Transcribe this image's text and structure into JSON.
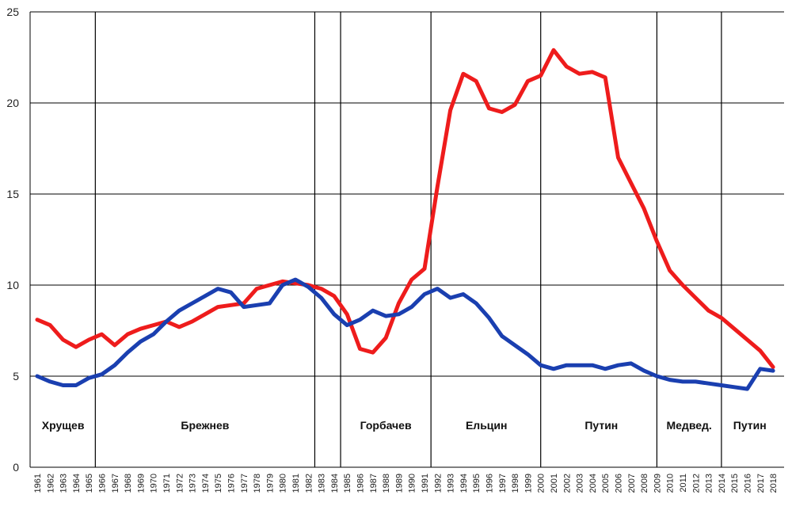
{
  "chart_data": {
    "type": "line",
    "title": "",
    "xlabel": "",
    "ylabel": "",
    "ylim": [
      0,
      25
    ],
    "yticks": [
      0,
      5,
      10,
      15,
      20,
      25
    ],
    "grid": true,
    "x": [
      "1961",
      "1962",
      "1963",
      "1964",
      "1965",
      "1966",
      "1967",
      "1968",
      "1969",
      "1970",
      "1971",
      "1972",
      "1973",
      "1974",
      "1975",
      "1976",
      "1977",
      "1978",
      "1979",
      "1980",
      "1981",
      "1982",
      "1983",
      "1984",
      "1985",
      "1986",
      "1987",
      "1988",
      "1989",
      "1990",
      "1991",
      "1992",
      "1993",
      "1994",
      "1995",
      "1996",
      "1997",
      "1998",
      "1999",
      "2000",
      "2001",
      "2002",
      "2003",
      "2004",
      "2005",
      "2006",
      "2007",
      "2008",
      "2009",
      "2010",
      "2011",
      "2012",
      "2013",
      "2014",
      "2015",
      "2016",
      "2017",
      "2018"
    ],
    "series": [
      {
        "color": "#ee1c1c",
        "values": [
          8.1,
          7.8,
          7.0,
          6.6,
          7.0,
          7.3,
          6.7,
          7.3,
          7.6,
          7.8,
          8.0,
          7.7,
          8.0,
          8.4,
          8.8,
          8.9,
          9.0,
          9.8,
          10.0,
          10.2,
          10.1,
          10.0,
          9.8,
          9.4,
          8.4,
          6.5,
          6.3,
          7.1,
          9.0,
          10.3,
          10.9,
          15.4,
          19.6,
          21.6,
          21.2,
          19.7,
          19.5,
          19.9,
          21.2,
          21.5,
          22.9,
          22.0,
          21.6,
          21.7,
          21.4,
          17.0,
          15.6,
          14.2,
          12.4,
          10.8,
          10.0,
          9.3,
          8.6,
          8.2,
          7.6,
          7.0,
          6.4,
          5.5
        ]
      },
      {
        "color": "#1a3fb0",
        "values": [
          5.0,
          4.7,
          4.5,
          4.5,
          4.9,
          5.1,
          5.6,
          6.3,
          6.9,
          7.3,
          8.0,
          8.6,
          9.0,
          9.4,
          9.8,
          9.6,
          8.8,
          8.9,
          9.0,
          10.0,
          10.3,
          9.9,
          9.3,
          8.4,
          7.8,
          8.1,
          8.6,
          8.3,
          8.4,
          8.8,
          9.5,
          9.8,
          9.3,
          9.5,
          9.0,
          8.2,
          7.2,
          6.7,
          6.2,
          5.6,
          5.4,
          5.6,
          5.6,
          5.6,
          5.4,
          5.6,
          5.7,
          5.3,
          5.0,
          4.8,
          4.7,
          4.7,
          4.6,
          4.5,
          4.4,
          4.3,
          5.4,
          5.3
        ]
      }
    ],
    "period_dividers": [
      "1965.5",
      "1982.5",
      "1984.5",
      "1991.5",
      "2000",
      "2009",
      "2014"
    ],
    "period_labels": [
      {
        "text": "Хрущев",
        "center_year": 1963
      },
      {
        "text": "Брежнев",
        "center_year": 1974
      },
      {
        "text": "Горбачев",
        "center_year": 1988
      },
      {
        "text": "Ельцин",
        "center_year": 1995.8
      },
      {
        "text": "Путин",
        "center_year": 2004.7
      },
      {
        "text": "Медвед.",
        "center_year": 2011.5
      },
      {
        "text": "Путин",
        "center_year": 2016.2
      }
    ]
  }
}
